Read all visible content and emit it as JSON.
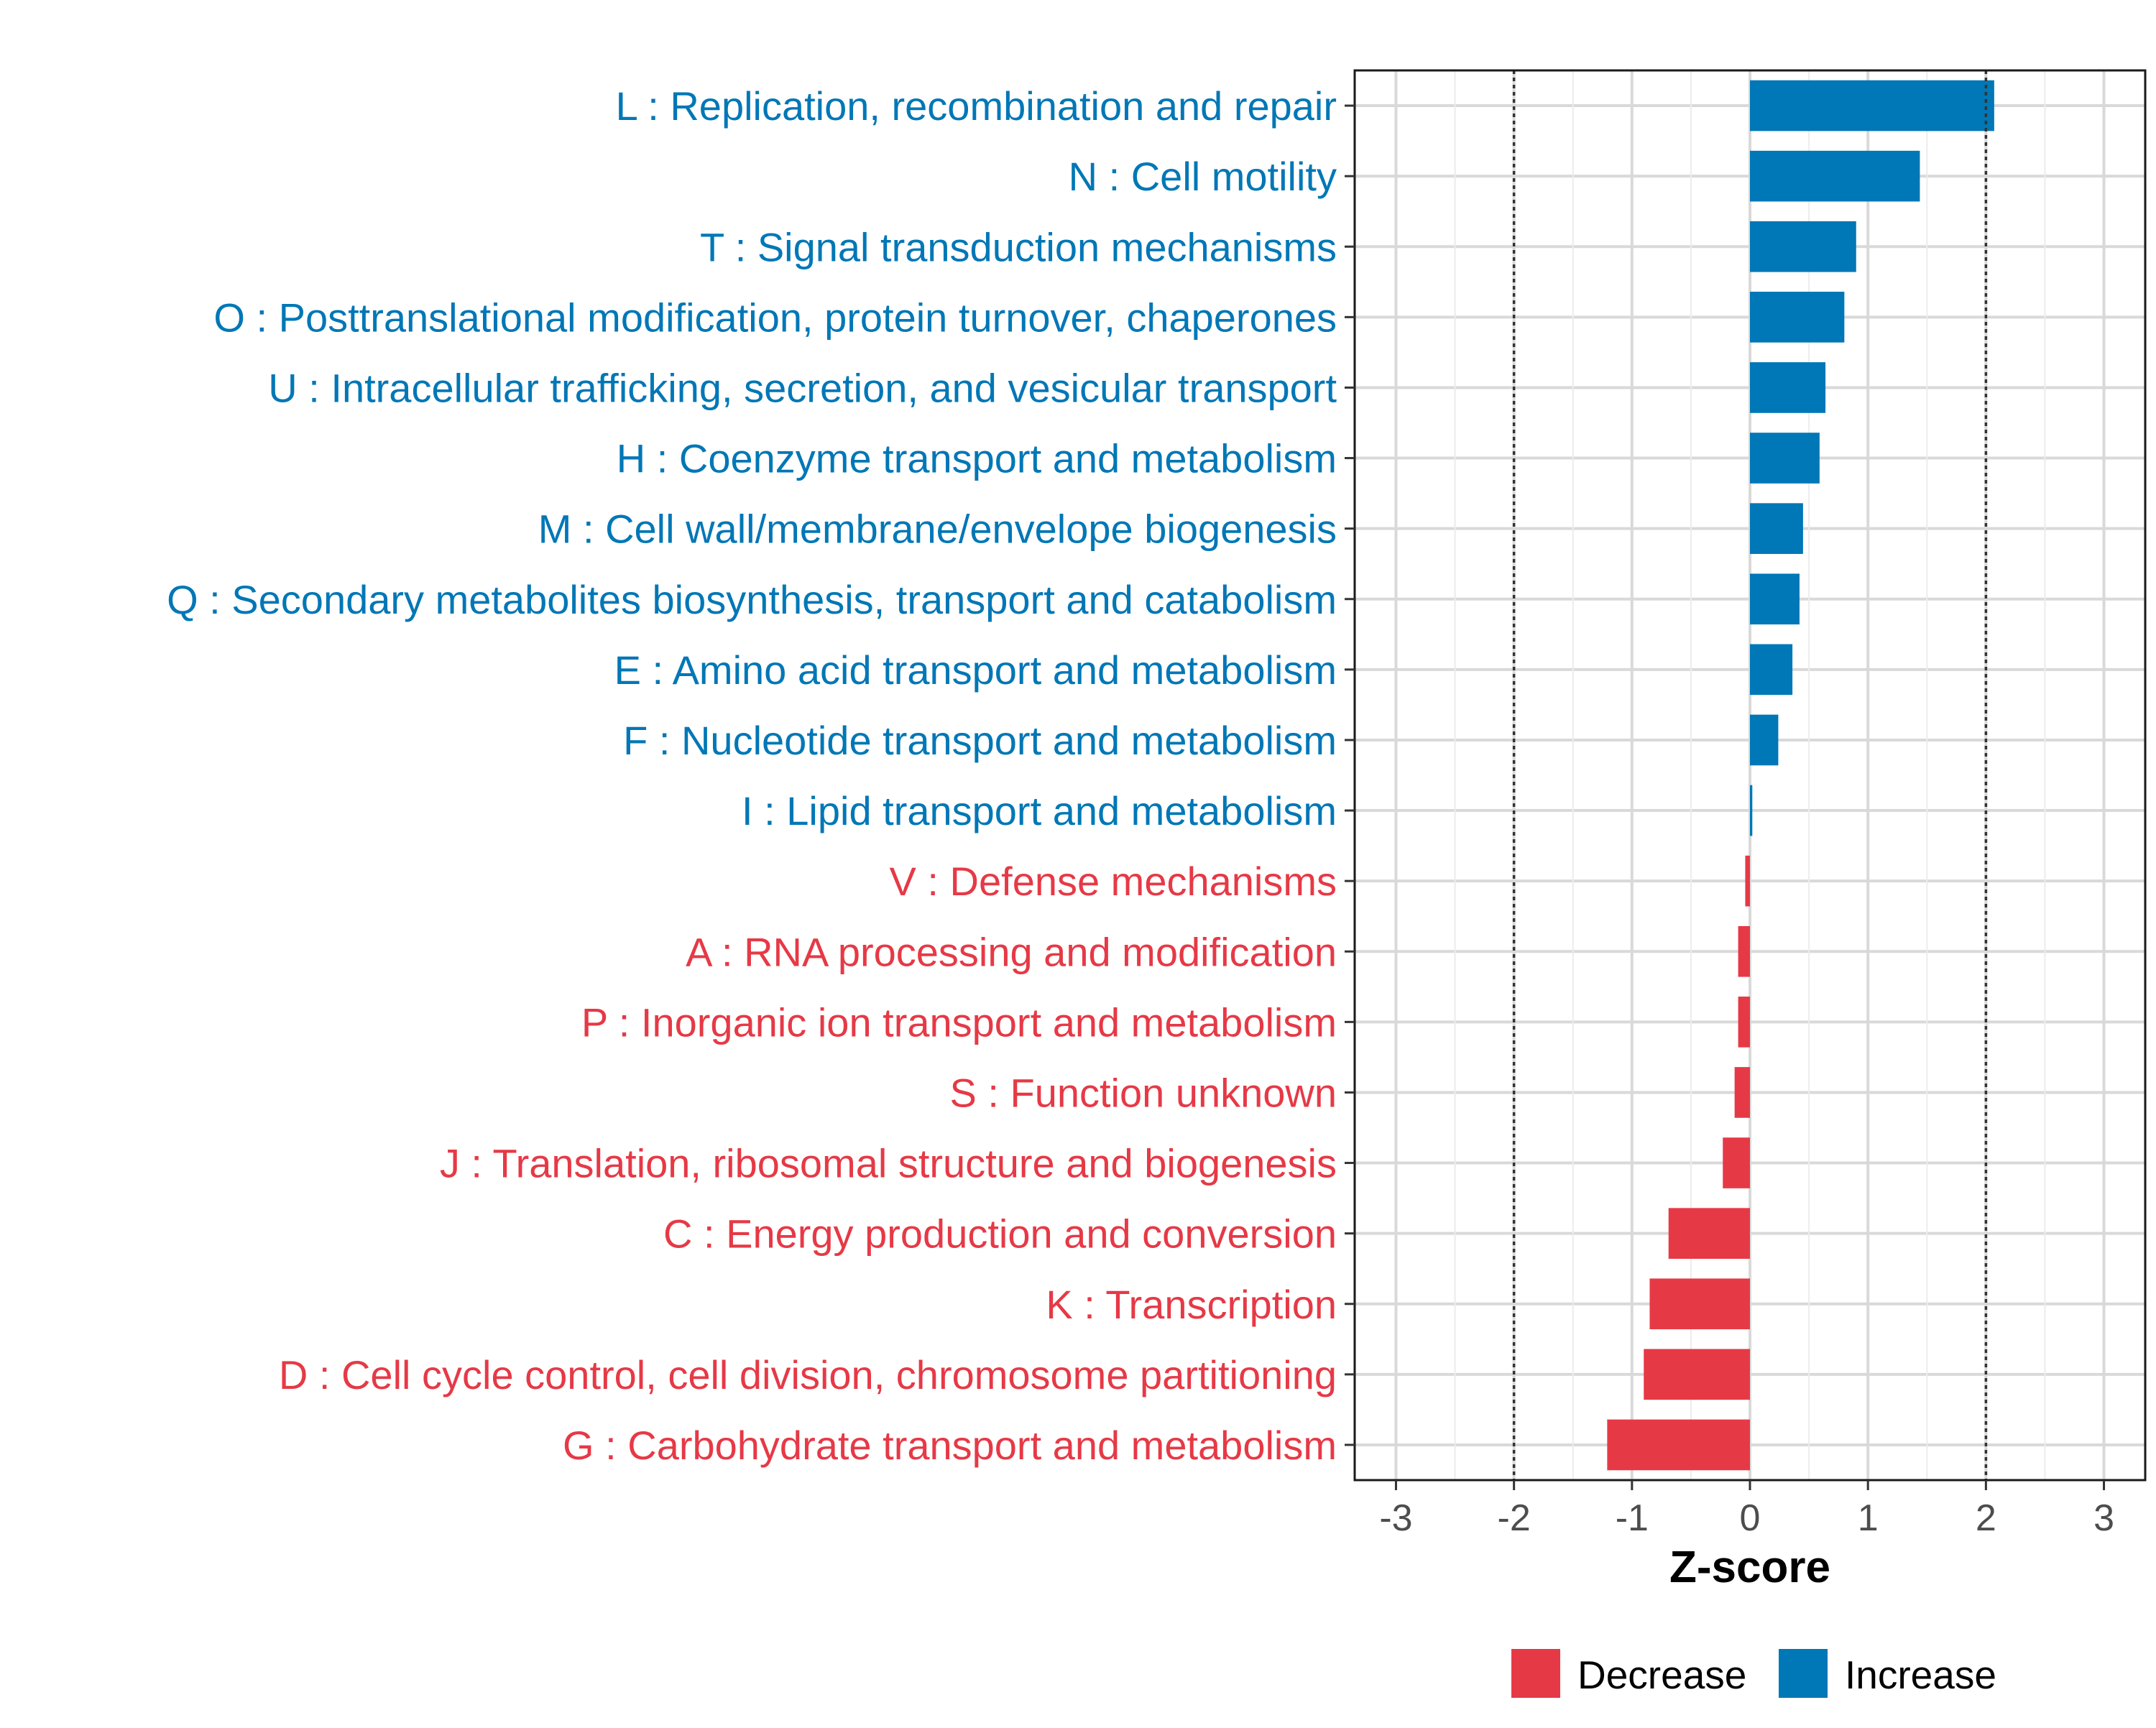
{
  "chart_data": {
    "type": "bar",
    "orientation": "horizontal",
    "xlabel": "Z-score",
    "ylabel": "",
    "xlim": [
      -3.35,
      3.35
    ],
    "x_ticks": [
      -3,
      -2,
      -1,
      0,
      1,
      2,
      3
    ],
    "x_tick_labels": [
      "-3",
      "-2",
      "-1",
      "0",
      "1",
      "2",
      "3"
    ],
    "threshold_lines": [
      -2,
      2
    ],
    "grid": true,
    "legend_position": "bottom",
    "colors": {
      "Decrease": "#E63946",
      "Increase": "#0077B6"
    },
    "legend": [
      {
        "label": "Decrease",
        "color": "#E63946"
      },
      {
        "label": "Increase",
        "color": "#0077B6"
      }
    ],
    "categories": [
      "L : Replication, recombination and repair",
      "N : Cell motility",
      "T : Signal transduction mechanisms",
      "O : Posttranslational modification, protein turnover, chaperones",
      "U : Intracellular trafficking, secretion, and vesicular transport",
      "H : Coenzyme transport and metabolism",
      "M : Cell wall/membrane/envelope biogenesis",
      "Q : Secondary metabolites biosynthesis, transport and catabolism",
      "E : Amino acid transport and metabolism",
      "F : Nucleotide transport and metabolism",
      "I : Lipid transport and metabolism",
      "V : Defense mechanisms",
      "A : RNA processing and modification",
      "P : Inorganic ion transport and metabolism",
      "S : Function unknown",
      "J : Translation, ribosomal structure and biogenesis",
      "C : Energy production and conversion",
      "K : Transcription",
      "D : Cell cycle control, cell division, chromosome partitioning",
      "G : Carbohydrate transport and metabolism"
    ],
    "values": [
      2.07,
      1.44,
      0.9,
      0.8,
      0.64,
      0.59,
      0.45,
      0.42,
      0.36,
      0.24,
      0.02,
      -0.04,
      -0.1,
      -0.1,
      -0.13,
      -0.23,
      -0.69,
      -0.85,
      -0.9,
      -1.21
    ],
    "direction": [
      "Increase",
      "Increase",
      "Increase",
      "Increase",
      "Increase",
      "Increase",
      "Increase",
      "Increase",
      "Increase",
      "Increase",
      "Increase",
      "Decrease",
      "Decrease",
      "Decrease",
      "Decrease",
      "Decrease",
      "Decrease",
      "Decrease",
      "Decrease",
      "Decrease"
    ]
  }
}
